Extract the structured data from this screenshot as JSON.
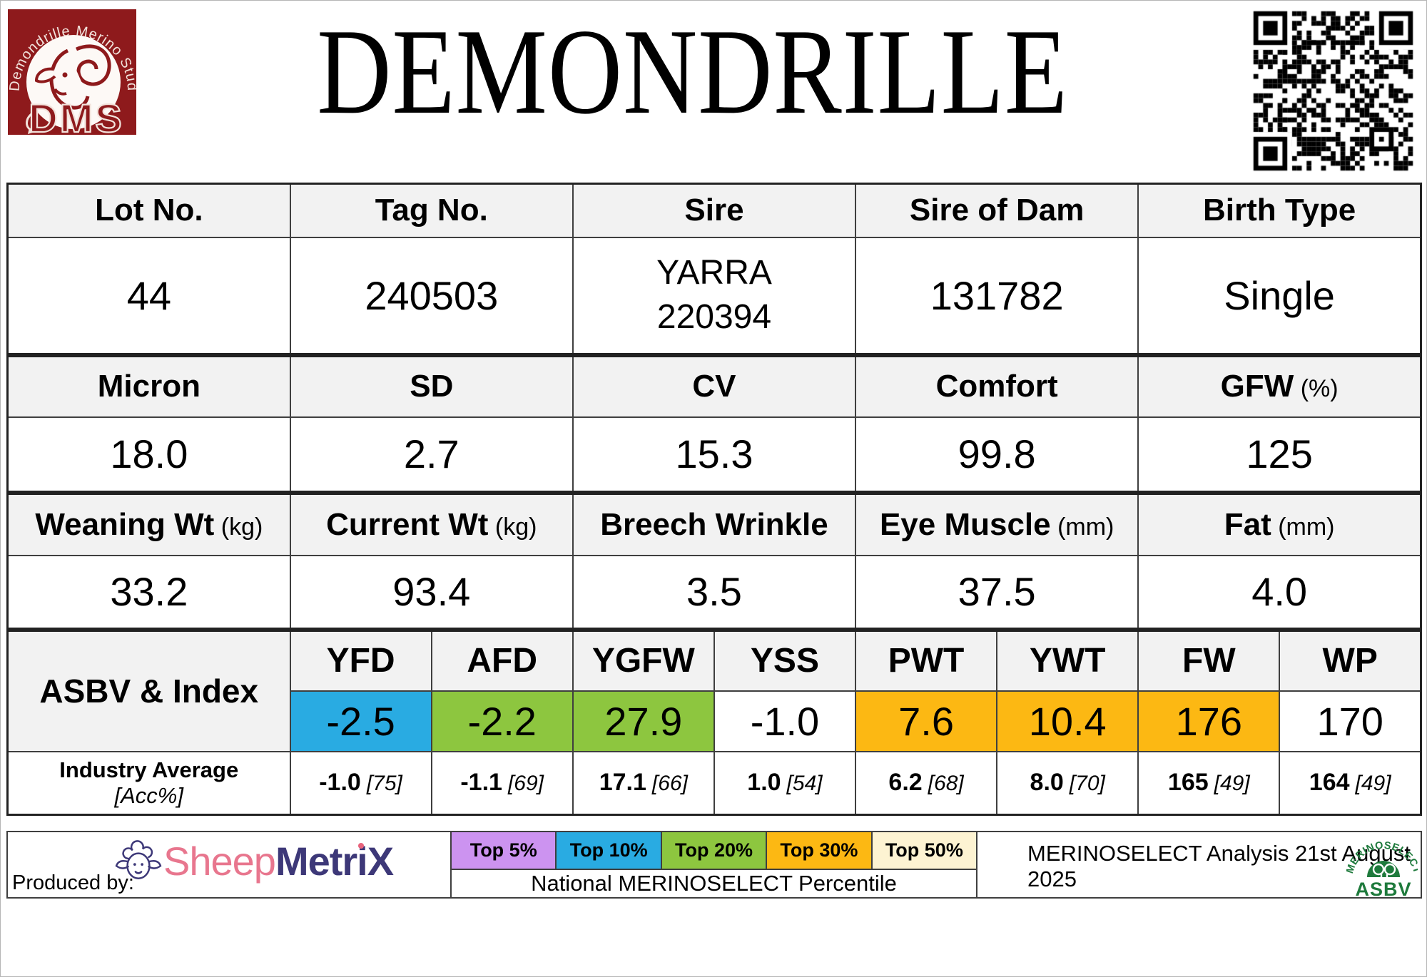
{
  "title": "DEMONDRILLE",
  "stud_logo": {
    "arc_text": "Demondrille Merino Stud",
    "initials": "DMS"
  },
  "colors": {
    "header_bg": "#f2f2f2",
    "stud_red": "#8e1a1c",
    "metrix_navy": "#3d3878",
    "metrix_pink": "#e8768e",
    "merino_green": "#1e7a3c"
  },
  "tables": [
    {
      "headers": [
        {
          "label": "Lot No."
        },
        {
          "label": "Tag No."
        },
        {
          "label": "Sire"
        },
        {
          "label": "Sire of Dam"
        },
        {
          "label": "Birth Type"
        }
      ],
      "values": [
        "44",
        "240503",
        "YARRA\n220394",
        "131782",
        "Single"
      ]
    },
    {
      "headers": [
        {
          "label": "Micron"
        },
        {
          "label": "SD"
        },
        {
          "label": "CV"
        },
        {
          "label": "Comfort"
        },
        {
          "label": "GFW",
          "unit": " (%)"
        }
      ],
      "values": [
        "18.0",
        "2.7",
        "15.3",
        "99.8",
        "125"
      ]
    },
    {
      "headers": [
        {
          "label": "Weaning Wt",
          "unit": " (kg)"
        },
        {
          "label": "Current Wt",
          "unit": " (kg)"
        },
        {
          "label": "Breech Wrinkle"
        },
        {
          "label": "Eye Muscle",
          "unit": " (mm)"
        },
        {
          "label": "Fat",
          "unit": " (mm)"
        }
      ],
      "values": [
        "33.2",
        "93.4",
        "3.5",
        "37.5",
        "4.0"
      ]
    }
  ],
  "asbv": {
    "row_label": "ASBV & Index",
    "columns": [
      "YFD",
      "AFD",
      "YGFW",
      "YSS",
      "PWT",
      "YWT",
      "FW",
      "WP"
    ],
    "values": [
      {
        "text": "-2.5",
        "color": "#29abe2"
      },
      {
        "text": "-2.2",
        "color": "#8dc63f"
      },
      {
        "text": "27.9",
        "color": "#8dc63f"
      },
      {
        "text": "-1.0",
        "color": "#ffffff"
      },
      {
        "text": "7.6",
        "color": "#fcb813"
      },
      {
        "text": "10.4",
        "color": "#fcb813"
      },
      {
        "text": "176",
        "color": "#fcb813"
      },
      {
        "text": "170",
        "color": "#ffffff"
      }
    ],
    "industry_label": "Industry Average",
    "acc_label": "[Acc%]",
    "industry": [
      {
        "value": "-1.0",
        "acc": "[75]"
      },
      {
        "value": "-1.1",
        "acc": "[69]"
      },
      {
        "value": "17.1",
        "acc": "[66]"
      },
      {
        "value": "1.0",
        "acc": "[54]"
      },
      {
        "value": "6.2",
        "acc": "[68]"
      },
      {
        "value": "8.0",
        "acc": "[70]"
      },
      {
        "value": "165",
        "acc": "[49]"
      },
      {
        "value": "164",
        "acc": "[49]"
      }
    ]
  },
  "legend": {
    "items": [
      {
        "label": "Top 5%",
        "color": "#cc93f0"
      },
      {
        "label": "Top 10%",
        "color": "#29abe2"
      },
      {
        "label": "Top 20%",
        "color": "#8dc63f"
      },
      {
        "label": "Top 30%",
        "color": "#fcb813"
      },
      {
        "label": "Top 50%",
        "color": "#fdf3d2"
      }
    ],
    "caption": "National MERINOSELECT Percentile"
  },
  "footer": {
    "produced_by": "Produced by:",
    "sheepmetrix_part1": "Sheep",
    "sheepmetrix_part2": "MetriX",
    "analysis_note": "MERINOSELECT Analysis 21st August 2025",
    "asbv_logo": {
      "arc_text": "MERINOSELECT",
      "label": "ASBV"
    }
  }
}
